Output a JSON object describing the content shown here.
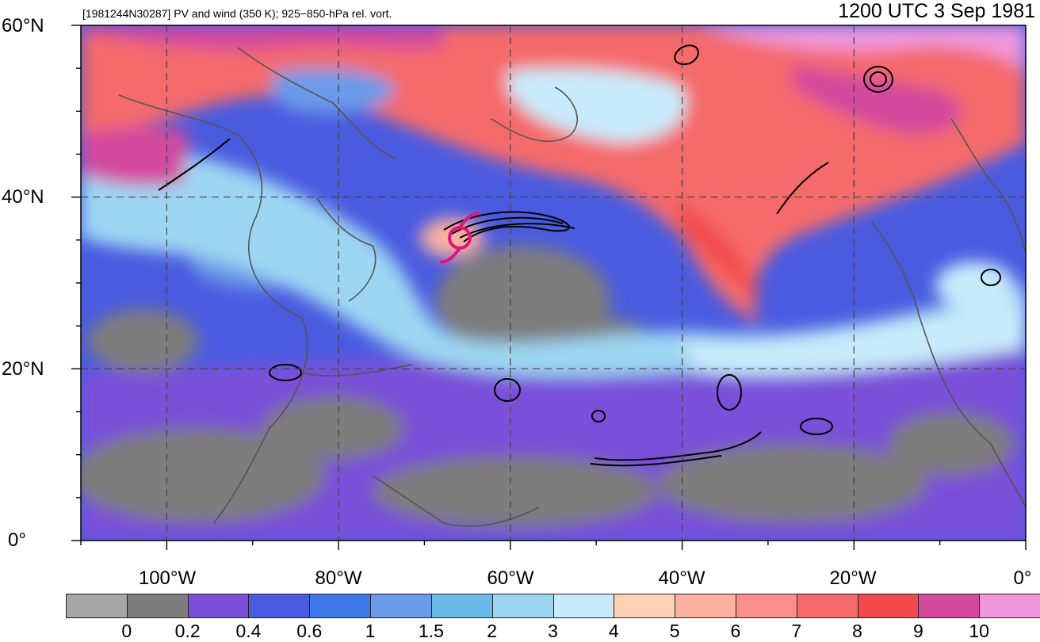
{
  "header": {
    "subtitle": "[1981244N30287] PV and wind (350 K); 925−850-hPa rel. vort.",
    "title": "1200 UTC 3 Sep 1981"
  },
  "axes": {
    "lat_labels": [
      "60°N",
      "40°N",
      "20°N",
      "0°"
    ],
    "lon_labels": [
      "100°W",
      "80°W",
      "60°W",
      "40°W",
      "20°W",
      "0°"
    ]
  },
  "map": {
    "extent": {
      "lon_min": -110,
      "lon_max": 0,
      "lat_min": 0,
      "lat_max": 60
    },
    "gridline_style": "dashed",
    "marker_color": "#e0157a"
  },
  "colorbar": {
    "colors": [
      "#a6a6a6",
      "#7d7d7d",
      "#7a4fd9",
      "#4a5be0",
      "#3f78e8",
      "#6a9ae8",
      "#6bbbea",
      "#9dd6f3",
      "#c8ebfb",
      "#fdd1b4",
      "#fbb0a0",
      "#f98e8a",
      "#f56b6b",
      "#f24a4a",
      "#d34a9e",
      "#ef98dd"
    ],
    "labels": [
      "0",
      "0.2",
      "0.4",
      "0.6",
      "1",
      "1.5",
      "2",
      "3",
      "4",
      "5",
      "6",
      "7",
      "8",
      "9",
      "10"
    ]
  }
}
